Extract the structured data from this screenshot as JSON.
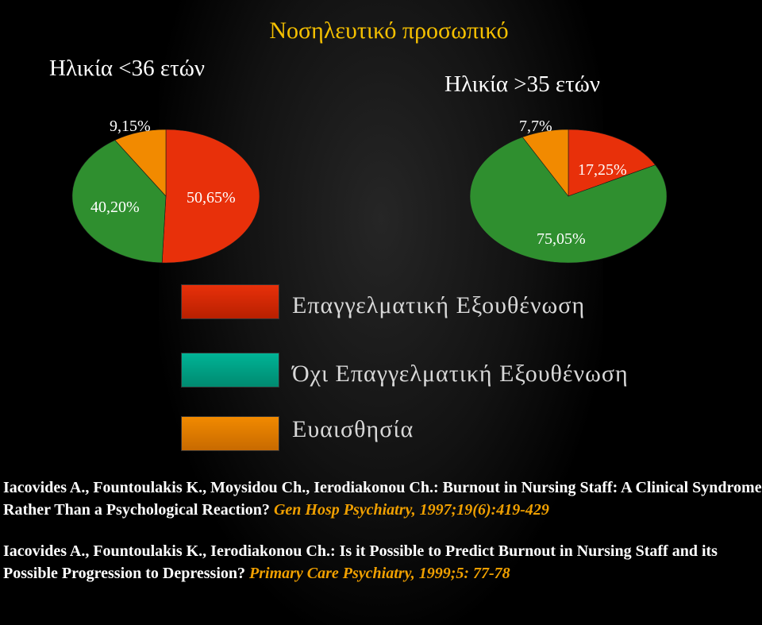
{
  "title": "Νοσηλευτικό προσωπικό",
  "colors": {
    "burnout": "#e8300a",
    "no_burnout": "#2f8f2f",
    "sensitivity": "#f28a00",
    "legend_no_burnout": "#00b496",
    "title": "#f5c000",
    "journal": "#f0a000"
  },
  "chart_data": [
    {
      "type": "pie",
      "title": "Ηλικία <36 ετών",
      "slices": [
        {
          "key": "burnout",
          "value": 50.65,
          "label": "50,65%"
        },
        {
          "key": "no_burnout",
          "value": 40.2,
          "label": "40,20%"
        },
        {
          "key": "sensitivity",
          "value": 9.15,
          "label": "9,15%"
        }
      ]
    },
    {
      "type": "pie",
      "title": "Ηλικία >35 ετών",
      "slices": [
        {
          "key": "burnout",
          "value": 17.25,
          "label": "17,25%"
        },
        {
          "key": "no_burnout",
          "value": 75.05,
          "label": "75,05%"
        },
        {
          "key": "sensitivity",
          "value": 7.7,
          "label": "7,7%"
        }
      ]
    }
  ],
  "legend": [
    {
      "key": "burnout",
      "label": "Επαγγελματική Εξουθένωση"
    },
    {
      "key": "no_burnout",
      "label": "Όχι Επαγγελματική Εξουθένωση"
    },
    {
      "key": "sensitivity",
      "label": "Ευαισθησία"
    }
  ],
  "references": [
    {
      "text": "Iacovides A., Fountoulakis K., Moysidou Ch., Ierodiakonou Ch.: Burnout in Nursing Staff: A Clinical Syndrome Rather Than a Psychological Reaction?",
      "journal": "Gen  Hosp Psychiatry, 1997;19(6):419-429"
    },
    {
      "text": "Iacovides A., Fountoulakis K., Ierodiakonou Ch.: Is it Possible to Predict Burnout in Nursing Staff and its Possible Progression to Depression?",
      "journal": "Primary Care Psychiatry, 1999;5: 77-78"
    }
  ]
}
